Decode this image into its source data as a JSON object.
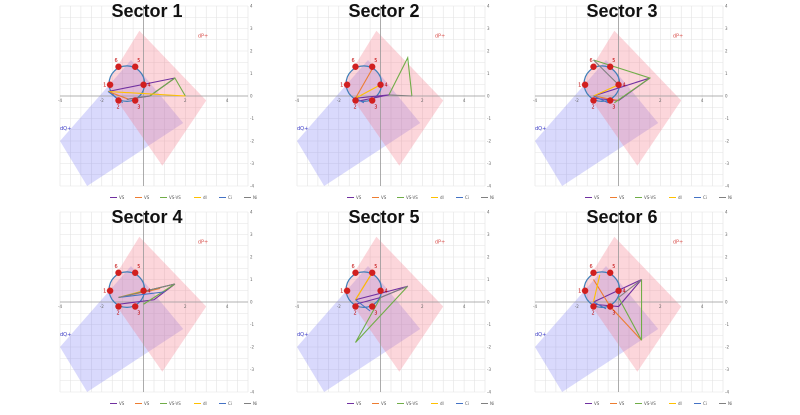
{
  "chart_data": [
    {
      "type": "line",
      "title": "Sector 1",
      "xlim": [
        -4,
        5
      ],
      "ylim": [
        -4,
        4
      ],
      "points": [
        {
          "label": "1",
          "x": -1.6,
          "y": 0.5
        },
        {
          "label": "2",
          "x": -1.2,
          "y": -0.2
        },
        {
          "label": "3",
          "x": -0.4,
          "y": -0.2
        },
        {
          "label": "4",
          "x": 0.0,
          "y": 0.5
        },
        {
          "label": "5",
          "x": -0.4,
          "y": 1.3
        },
        {
          "label": "6",
          "x": -1.2,
          "y": 1.3
        }
      ],
      "series": [
        {
          "name": "VS",
          "color": "#7030a0",
          "values": [
            [
              -1.7,
              0.2
            ],
            [
              1.5,
              0.8
            ],
            [
              0.3,
              0.0
            ],
            [
              -0.8,
              -0.15
            ]
          ]
        },
        {
          "name": "VS",
          "color": "#ed7d31",
          "values": [
            [
              -1.7,
              0.2
            ],
            [
              -0.7,
              -0.15
            ]
          ]
        },
        {
          "name": "VS-VS",
          "color": "#70ad47",
          "values": [
            [
              0.3,
              0.0
            ],
            [
              1.5,
              0.8
            ],
            [
              2.0,
              0.0
            ]
          ]
        },
        {
          "name": "dI",
          "color": "#ffc000",
          "values": [
            [
              -1.7,
              0.2
            ],
            [
              2.0,
              0.0
            ]
          ]
        },
        {
          "name": "Ci",
          "color": "#4472c4",
          "values": [
            [
              -1.7,
              0.2
            ],
            [
              -1.0,
              -0.3
            ]
          ]
        },
        {
          "name": "Ni",
          "color": "#808080",
          "values": [
            [
              -0.8,
              -0.15
            ],
            [
              0.3,
              0.0
            ]
          ]
        }
      ],
      "circle": {
        "cx": -0.8,
        "cy": 0.55,
        "r": 0.85
      },
      "region_labels": {
        "p": "dP+",
        "q": "dQ+"
      },
      "legend": "bottom"
    },
    {
      "type": "line",
      "title": "Sector 2",
      "xlim": [
        -4,
        5
      ],
      "ylim": [
        -4,
        4
      ],
      "points": [
        {
          "label": "1",
          "x": -1.6,
          "y": 0.5
        },
        {
          "label": "2",
          "x": -1.2,
          "y": -0.2
        },
        {
          "label": "3",
          "x": -0.4,
          "y": -0.2
        },
        {
          "label": "4",
          "x": 0.0,
          "y": 0.5
        },
        {
          "label": "5",
          "x": -0.4,
          "y": 1.3
        },
        {
          "label": "6",
          "x": -1.2,
          "y": 1.3
        }
      ],
      "series": [
        {
          "name": "VS",
          "color": "#7030a0",
          "values": [
            [
              -1.2,
              -0.1
            ],
            [
              0.4,
              0.05
            ],
            [
              -1.2,
              -0.25
            ]
          ]
        },
        {
          "name": "VS",
          "color": "#ed7d31",
          "values": [
            [
              -1.2,
              -0.1
            ],
            [
              -0.4,
              1.2
            ]
          ]
        },
        {
          "name": "VS-VS",
          "color": "#70ad47",
          "values": [
            [
              0.4,
              0.05
            ],
            [
              1.3,
              1.7
            ],
            [
              1.5,
              0.0
            ]
          ]
        },
        {
          "name": "dI",
          "color": "#ffc000",
          "values": [
            [
              -1.2,
              -0.1
            ],
            [
              0.0,
              0.5
            ]
          ]
        },
        {
          "name": "Ci",
          "color": "#4472c4",
          "values": [
            [
              -1.2,
              -0.1
            ],
            [
              -0.8,
              -0.3
            ]
          ]
        },
        {
          "name": "Ni",
          "color": "#808080",
          "values": [
            [
              0.4,
              0.05
            ],
            [
              1.5,
              0.0
            ]
          ]
        }
      ],
      "circle": {
        "cx": -0.8,
        "cy": 0.55,
        "r": 0.85
      },
      "region_labels": {
        "p": "dP+",
        "q": "dQ+"
      },
      "legend": "bottom"
    },
    {
      "type": "line",
      "title": "Sector 3",
      "xlim": [
        -4,
        5
      ],
      "ylim": [
        -4,
        4
      ],
      "points": [
        {
          "label": "1",
          "x": -1.6,
          "y": 0.5
        },
        {
          "label": "2",
          "x": -1.2,
          "y": -0.2
        },
        {
          "label": "3",
          "x": -0.4,
          "y": -0.2
        },
        {
          "label": "4",
          "x": 0.0,
          "y": 0.5
        },
        {
          "label": "5",
          "x": -0.4,
          "y": 1.3
        },
        {
          "label": "6",
          "x": -1.2,
          "y": 1.3
        }
      ],
      "series": [
        {
          "name": "VS",
          "color": "#7030a0",
          "values": [
            [
              -1.2,
              0.0
            ],
            [
              1.5,
              0.8
            ],
            [
              0.0,
              -0.2
            ],
            [
              -1.2,
              -0.1
            ]
          ]
        },
        {
          "name": "VS",
          "color": "#ed7d31",
          "values": [
            [
              -1.2,
              0.0
            ],
            [
              0.0,
              -0.2
            ]
          ]
        },
        {
          "name": "VS-VS",
          "color": "#70ad47",
          "values": [
            [
              -1.2,
              1.6
            ],
            [
              1.5,
              0.8
            ],
            [
              -0.2,
              -0.3
            ]
          ]
        },
        {
          "name": "dI",
          "color": "#ffc000",
          "values": [
            [
              -1.2,
              0.0
            ],
            [
              0.0,
              0.5
            ]
          ]
        },
        {
          "name": "Ci",
          "color": "#4472c4",
          "values": [
            [
              -1.2,
              0.0
            ],
            [
              -0.5,
              -0.3
            ]
          ]
        },
        {
          "name": "Ni",
          "color": "#808080",
          "values": [
            [
              -1.2,
              1.6
            ],
            [
              0.0,
              0.5
            ]
          ]
        }
      ],
      "circle": {
        "cx": -0.8,
        "cy": 0.55,
        "r": 0.85
      },
      "region_labels": {
        "p": "dP+",
        "q": "dQ+"
      },
      "legend": "bottom"
    },
    {
      "type": "line",
      "title": "Sector 4",
      "xlim": [
        -4,
        5
      ],
      "ylim": [
        -4,
        4
      ],
      "points": [
        {
          "label": "1",
          "x": -1.6,
          "y": 0.5
        },
        {
          "label": "2",
          "x": -1.2,
          "y": -0.2
        },
        {
          "label": "3",
          "x": -0.4,
          "y": -0.2
        },
        {
          "label": "4",
          "x": 0.0,
          "y": 0.5
        },
        {
          "label": "5",
          "x": -0.4,
          "y": 1.3
        },
        {
          "label": "6",
          "x": -1.2,
          "y": 1.3
        }
      ],
      "series": [
        {
          "name": "VS",
          "color": "#7030a0",
          "values": [
            [
              -1.2,
              0.2
            ],
            [
              1.5,
              0.8
            ],
            [
              0.5,
              0.1
            ],
            [
              -1.2,
              -0.1
            ]
          ]
        },
        {
          "name": "VS",
          "color": "#ed7d31",
          "values": [
            [
              -1.2,
              0.2
            ],
            [
              0.8,
              0.6
            ]
          ]
        },
        {
          "name": "VS-VS",
          "color": "#70ad47",
          "values": [
            [
              -1.2,
              0.2
            ],
            [
              1.5,
              0.8
            ],
            [
              0.0,
              -0.1
            ]
          ]
        },
        {
          "name": "dI",
          "color": "#ffc000",
          "values": [
            [
              -1.2,
              0.2
            ],
            [
              0.0,
              0.5
            ]
          ]
        },
        {
          "name": "Ci",
          "color": "#4472c4",
          "values": [
            [
              -1.2,
              0.2
            ],
            [
              1.0,
              0.45
            ]
          ]
        },
        {
          "name": "Ni",
          "color": "#808080",
          "values": [
            [
              -1.2,
              0.2
            ],
            [
              1.5,
              0.8
            ]
          ]
        }
      ],
      "circle": {
        "cx": -0.8,
        "cy": 0.55,
        "r": 0.85
      },
      "region_labels": {
        "p": "dP+",
        "q": "dQ+"
      },
      "legend": "bottom"
    },
    {
      "type": "line",
      "title": "Sector 5",
      "xlim": [
        -4,
        5
      ],
      "ylim": [
        -4,
        4
      ],
      "points": [
        {
          "label": "1",
          "x": -1.6,
          "y": 0.5
        },
        {
          "label": "2",
          "x": -1.2,
          "y": -0.2
        },
        {
          "label": "3",
          "x": -0.4,
          "y": -0.2
        },
        {
          "label": "4",
          "x": 0.0,
          "y": 0.5
        },
        {
          "label": "5",
          "x": -0.4,
          "y": 1.3
        },
        {
          "label": "6",
          "x": -1.2,
          "y": 1.3
        }
      ],
      "series": [
        {
          "name": "VS",
          "color": "#7030a0",
          "values": [
            [
              -1.2,
              0.1
            ],
            [
              1.3,
              0.7
            ],
            [
              0.0,
              0.2
            ],
            [
              -1.2,
              -0.1
            ]
          ]
        },
        {
          "name": "VS",
          "color": "#ed7d31",
          "values": [
            [
              -1.2,
              0.1
            ],
            [
              -0.4,
              1.3
            ]
          ]
        },
        {
          "name": "VS-VS",
          "color": "#70ad47",
          "values": [
            [
              0.0,
              0.2
            ],
            [
              -1.2,
              -1.8
            ],
            [
              1.3,
              0.7
            ]
          ]
        },
        {
          "name": "dI",
          "color": "#ffc000",
          "values": [
            [
              -1.2,
              0.1
            ],
            [
              -0.4,
              1.3
            ]
          ]
        },
        {
          "name": "Ci",
          "color": "#4472c4",
          "values": [
            [
              -1.2,
              0.1
            ],
            [
              -0.5,
              -0.4
            ]
          ]
        },
        {
          "name": "Ni",
          "color": "#808080",
          "values": [
            [
              0.0,
              0.2
            ],
            [
              1.3,
              0.7
            ]
          ]
        }
      ],
      "circle": {
        "cx": -0.8,
        "cy": 0.55,
        "r": 0.85
      },
      "region_labels": {
        "p": "dP+",
        "q": "dQ+"
      },
      "legend": "bottom"
    },
    {
      "type": "line",
      "title": "Sector 6",
      "xlim": [
        -4,
        5
      ],
      "ylim": [
        -4,
        4
      ],
      "points": [
        {
          "label": "1",
          "x": -1.6,
          "y": 0.5
        },
        {
          "label": "2",
          "x": -1.2,
          "y": -0.2
        },
        {
          "label": "3",
          "x": -0.4,
          "y": -0.2
        },
        {
          "label": "4",
          "x": 0.0,
          "y": 0.5
        },
        {
          "label": "5",
          "x": -0.4,
          "y": 1.3
        },
        {
          "label": "6",
          "x": -1.2,
          "y": 1.3
        }
      ],
      "series": [
        {
          "name": "VS",
          "color": "#7030a0",
          "values": [
            [
              -1.2,
              0.0
            ],
            [
              1.1,
              1.0
            ],
            [
              0.0,
              -0.2
            ],
            [
              -1.2,
              -0.1
            ]
          ]
        },
        {
          "name": "VS",
          "color": "#ed7d31",
          "values": [
            [
              -1.2,
              1.0
            ],
            [
              -0.4,
              -0.2
            ],
            [
              1.1,
              -1.7
            ]
          ]
        },
        {
          "name": "VS-VS",
          "color": "#70ad47",
          "values": [
            [
              0.0,
              0.2
            ],
            [
              1.1,
              -1.7
            ],
            [
              1.1,
              1.0
            ]
          ]
        },
        {
          "name": "dI",
          "color": "#ffc000",
          "values": [
            [
              -1.2,
              0.0
            ],
            [
              -0.9,
              1.2
            ]
          ]
        },
        {
          "name": "Ci",
          "color": "#4472c4",
          "values": [
            [
              -1.2,
              0.0
            ],
            [
              -0.6,
              -0.3
            ]
          ]
        },
        {
          "name": "Ni",
          "color": "#808080",
          "values": [
            [
              0.0,
              0.2
            ],
            [
              1.1,
              1.0
            ]
          ]
        }
      ],
      "circle": {
        "cx": -0.8,
        "cy": 0.55,
        "r": 0.85
      },
      "region_labels": {
        "p": "dP+",
        "q": "dQ+"
      },
      "legend": "bottom"
    }
  ]
}
